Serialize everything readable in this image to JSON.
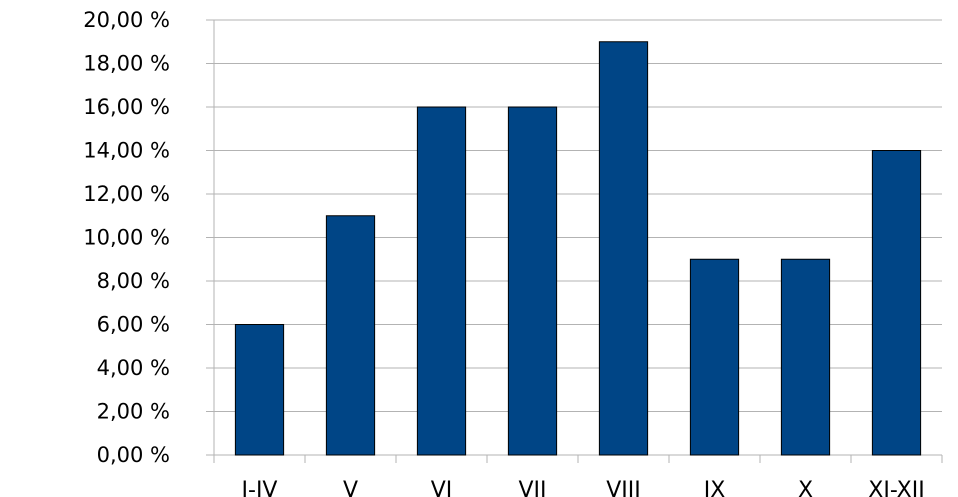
{
  "chart_data": {
    "type": "bar",
    "categories": [
      "I-IV",
      "V",
      "VI",
      "VII",
      "VIII",
      "IX",
      "X",
      "XI-XII"
    ],
    "values": [
      6,
      11,
      16,
      16,
      19,
      9,
      9,
      14
    ],
    "y_ticks": [
      "0,00 %",
      "2,00 %",
      "4,00 %",
      "6,00 %",
      "8,00 %",
      "10,00 %",
      "12,00 %",
      "14,00 %",
      "16,00 %",
      "18,00 %",
      "20,00 %"
    ],
    "ylim": [
      0,
      20
    ],
    "grid": true,
    "legend": "none",
    "colors": {
      "bar": "#004586",
      "bar_edge": "#000000",
      "grid": "#b3b3b3",
      "axis": "#b3b3b3"
    }
  }
}
